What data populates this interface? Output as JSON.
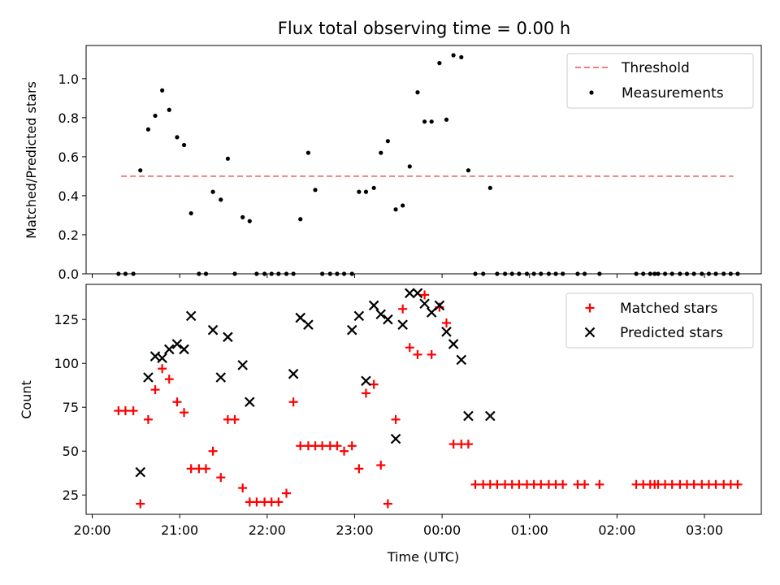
{
  "title": "Flux total observing time = 0.00 h",
  "colors": {
    "threshold": "#f08080",
    "measurement": "#000000",
    "matched": "#ff0000",
    "predicted": "#000000"
  },
  "chart_data": [
    {
      "type": "scatter",
      "ylabel": "Matched/Predicted stars",
      "ylim": [
        0,
        1.17
      ],
      "yticks": [
        "0.0",
        "0.2",
        "0.4",
        "0.6",
        "0.8",
        "1.0"
      ],
      "xlim": [
        -0.07,
        7.65
      ],
      "grid": false,
      "legend_position": "top-right",
      "threshold": {
        "name": "Threshold",
        "value": 0.5,
        "x_range": [
          0.33,
          7.33
        ]
      },
      "series": [
        {
          "name": "Measurements",
          "x": [
            0.3,
            0.38,
            0.47,
            0.55,
            0.64,
            0.72,
            0.8,
            0.88,
            0.97,
            1.05,
            1.13,
            1.22,
            1.3,
            1.38,
            1.47,
            1.55,
            1.63,
            1.72,
            1.8,
            1.88,
            1.97,
            2.05,
            2.13,
            2.22,
            2.3,
            2.38,
            2.47,
            2.55,
            2.63,
            2.72,
            2.8,
            2.88,
            2.97,
            3.05,
            3.13,
            3.22,
            3.3,
            3.38,
            3.47,
            3.55,
            3.63,
            3.72,
            3.8,
            3.88,
            3.97,
            4.05,
            4.13,
            4.22,
            4.3,
            4.38,
            4.47,
            4.55,
            4.63,
            4.72,
            4.8,
            4.88,
            4.97,
            5.05,
            5.13,
            5.22,
            5.3,
            5.38,
            5.55,
            5.63,
            5.8,
            6.22,
            6.3,
            6.38,
            6.43,
            6.47,
            6.55,
            6.63,
            6.72,
            6.8,
            6.88,
            6.97,
            7.05,
            7.13,
            7.22,
            7.3,
            7.38
          ],
          "y": [
            0,
            0,
            0,
            0.53,
            0.74,
            0.81,
            0.94,
            0.84,
            0.7,
            0.66,
            0.31,
            0,
            0,
            0.42,
            0.38,
            0.59,
            0,
            0.29,
            0.27,
            0,
            0,
            0,
            0,
            0,
            0,
            0.28,
            0.62,
            0.43,
            0,
            0,
            0,
            0,
            0,
            0.42,
            0.42,
            0.44,
            0.62,
            0.68,
            0.33,
            0.35,
            0.55,
            0.93,
            0.78,
            0.78,
            1.08,
            0.79,
            1.12,
            1.11,
            0.53,
            0,
            0,
            0.44,
            0,
            0,
            0,
            0,
            0,
            0,
            0,
            0,
            0,
            0,
            0,
            0,
            0,
            0,
            0,
            0,
            0,
            0,
            0,
            0,
            0,
            0,
            0,
            0,
            0,
            0,
            0,
            0,
            0
          ]
        }
      ]
    },
    {
      "type": "scatter",
      "ylabel": "Count",
      "xlabel": "Time (UTC)",
      "ylim": [
        14,
        145
      ],
      "yticks": [
        "25",
        "50",
        "75",
        "100",
        "125"
      ],
      "xlim": [
        -0.07,
        7.65
      ],
      "xticks": [
        "20:00",
        "21:00",
        "22:00",
        "23:00",
        "00:00",
        "01:00",
        "02:00",
        "03:00"
      ],
      "grid": false,
      "legend_position": "top-right",
      "series": [
        {
          "name": "Matched stars",
          "marker": "plus",
          "x": [
            0.3,
            0.38,
            0.47,
            0.55,
            0.64,
            0.72,
            0.8,
            0.88,
            0.97,
            1.05,
            1.13,
            1.22,
            1.3,
            1.38,
            1.47,
            1.55,
            1.63,
            1.72,
            1.8,
            1.88,
            1.97,
            2.05,
            2.13,
            2.22,
            2.3,
            2.38,
            2.47,
            2.55,
            2.63,
            2.72,
            2.8,
            2.88,
            2.97,
            3.05,
            3.13,
            3.22,
            3.3,
            3.38,
            3.47,
            3.55,
            3.63,
            3.72,
            3.8,
            3.88,
            3.97,
            4.05,
            4.13,
            4.22,
            4.3,
            4.38,
            4.47,
            4.55,
            4.63,
            4.72,
            4.8,
            4.88,
            4.97,
            5.05,
            5.13,
            5.22,
            5.3,
            5.38,
            5.55,
            5.63,
            5.8,
            6.22,
            6.3,
            6.38,
            6.43,
            6.47,
            6.55,
            6.63,
            6.72,
            6.8,
            6.88,
            6.97,
            7.05,
            7.13,
            7.22,
            7.3,
            7.38
          ],
          "y": [
            73,
            73,
            73,
            20,
            68,
            85,
            97,
            91,
            78,
            72,
            40,
            40,
            40,
            50,
            35,
            68,
            68,
            29,
            21,
            21,
            21,
            21,
            21,
            26,
            78,
            53,
            53,
            53,
            53,
            53,
            53,
            50,
            53,
            40,
            83,
            88,
            42,
            20,
            68,
            131,
            109,
            105,
            139,
            105,
            132,
            123,
            54,
            54,
            54,
            31,
            31,
            31,
            31,
            31,
            31,
            31,
            31,
            31,
            31,
            31,
            31,
            31,
            31,
            31,
            31,
            31,
            31,
            31,
            31,
            31,
            31,
            31,
            31,
            31,
            31,
            31,
            31,
            31,
            31,
            31,
            31
          ]
        },
        {
          "name": "Predicted stars",
          "marker": "x",
          "x": [
            0.55,
            0.64,
            0.72,
            0.8,
            0.88,
            0.97,
            1.05,
            1.13,
            1.38,
            1.47,
            1.55,
            1.72,
            1.8,
            2.3,
            2.38,
            2.47,
            2.97,
            3.05,
            3.13,
            3.22,
            3.3,
            3.38,
            3.47,
            3.55,
            3.63,
            3.72,
            3.8,
            3.88,
            3.97,
            4.05,
            4.13,
            4.22,
            4.3,
            4.55
          ],
          "y": [
            38,
            92,
            104,
            103,
            108,
            111,
            108,
            127,
            119,
            92,
            115,
            99,
            78,
            94,
            126,
            122,
            119,
            127,
            90,
            133,
            128,
            125,
            57,
            122,
            140,
            140,
            134,
            129,
            133,
            118,
            111,
            102,
            70,
            70
          ]
        }
      ]
    }
  ]
}
